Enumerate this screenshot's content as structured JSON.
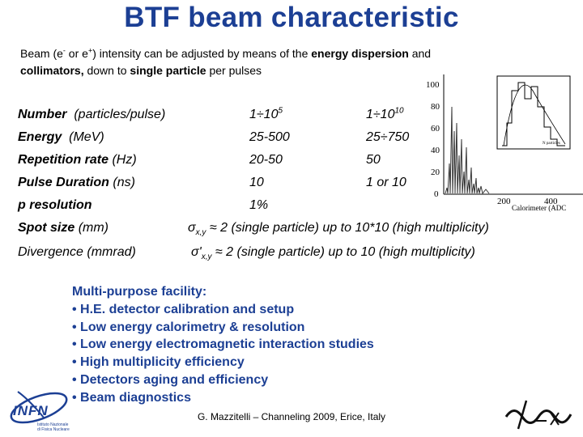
{
  "title": "BTF beam characteristic",
  "intro": {
    "p1": "Beam (e",
    "minus": "-",
    "p2": " or e",
    "plus": "+",
    "p3": ") intensity can be adjusted by means of the ",
    "b1": "energy dispersion",
    "p4": " and",
    "b2": "collimators,",
    "p5": " down to ",
    "b3": "single particle",
    "p6": " per pulses"
  },
  "table": {
    "number": {
      "label": "Number",
      "unit": "(particles/pulse)",
      "v1_base": "1÷10",
      "v1_exp": "5",
      "v2_base": "1÷10",
      "v2_exp": "10"
    },
    "energy": {
      "label": "Energy",
      "unit": "(MeV)",
      "v1": "25-500",
      "v2": "25÷750"
    },
    "rate": {
      "label": "Repetition rate",
      "unit": "(Hz)",
      "v1": "20-50",
      "v2": "50"
    },
    "duration": {
      "label": "Pulse Duration",
      "unit": "(ns)",
      "v1": "10",
      "v2": "1 or 10"
    },
    "resolution": {
      "label": "p resolution",
      "v1": "1%"
    },
    "spot": {
      "label": "Spot size",
      "unit": "(mm)",
      "sym": "σ",
      "sub": "x,y",
      "text": " ≈ 2 (single particle) up to 10*10 (high multiplicity)"
    },
    "divergence": {
      "label": "Divergence (mmrad)",
      "sym": "σ'",
      "sub": "x,y",
      "text": " ≈ 2 (single particle) up to 10 (high multiplicity)"
    }
  },
  "plot": {
    "y_ticks": [
      "100",
      "80",
      "60",
      "40",
      "20",
      "0"
    ],
    "x_ticks": [
      "200",
      "400"
    ],
    "x_label": "Calorimeter (ADC",
    "inset_label": "N particles"
  },
  "facility": {
    "heading": "Multi-purpose facility:",
    "items": [
      "• H.E. detector calibration and setup",
      "• Low energy calorimetry & resolution",
      "• Low energy electromagnetic interaction studies",
      "• High multiplicity efficiency",
      "• Detectors aging and efficiency",
      "• Beam diagnostics"
    ]
  },
  "footer": "G. Mazzitelli – Channeling 2009, Erice, Italy",
  "logo": {
    "infn": "INFN",
    "infn_sub": "Istituto Nazionale di Fisica Nucleare"
  },
  "colors": {
    "title": "#1c3f94",
    "list": "#1c3f94"
  }
}
